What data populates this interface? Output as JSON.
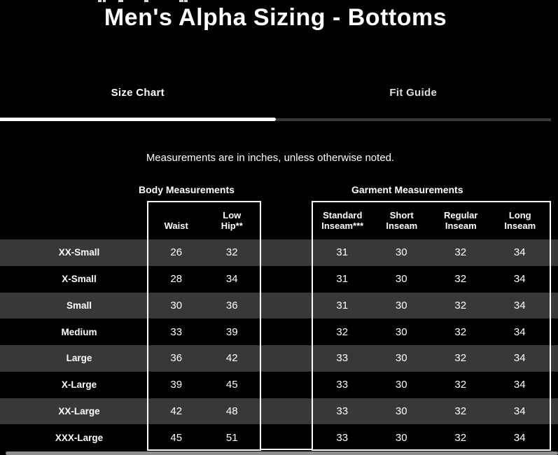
{
  "page": {
    "title": "Men's Alpha Sizing - Bottoms",
    "note": "Measurements are in inches, unless otherwise noted."
  },
  "tabs": [
    {
      "label": "Size Chart",
      "active": true
    },
    {
      "label": "Fit Guide",
      "active": false
    }
  ],
  "table": {
    "groups": [
      {
        "label": "Body Measurements",
        "columns": [
          "Waist",
          "Low Hip**"
        ]
      },
      {
        "label": "Garment Measurements",
        "columns": [
          "Standard Inseam***",
          "Short Inseam",
          "Regular Inseam",
          "Long Inseam"
        ]
      }
    ],
    "rows": [
      {
        "size": "XX-Small",
        "body": [
          "26",
          "32"
        ],
        "garment": [
          "31",
          "30",
          "32",
          "34"
        ]
      },
      {
        "size": "X-Small",
        "body": [
          "28",
          "34"
        ],
        "garment": [
          "31",
          "30",
          "32",
          "34"
        ]
      },
      {
        "size": "Small",
        "body": [
          "30",
          "36"
        ],
        "garment": [
          "31",
          "30",
          "32",
          "34"
        ]
      },
      {
        "size": "Medium",
        "body": [
          "33",
          "39"
        ],
        "garment": [
          "32",
          "30",
          "32",
          "34"
        ]
      },
      {
        "size": "Large",
        "body": [
          "36",
          "42"
        ],
        "garment": [
          "33",
          "30",
          "32",
          "34"
        ]
      },
      {
        "size": "X-Large",
        "body": [
          "39",
          "45"
        ],
        "garment": [
          "33",
          "30",
          "32",
          "34"
        ]
      },
      {
        "size": "XX-Large",
        "body": [
          "42",
          "48"
        ],
        "garment": [
          "33",
          "30",
          "32",
          "34"
        ]
      },
      {
        "size": "XXX-Large",
        "body": [
          "45",
          "51"
        ],
        "garment": [
          "33",
          "30",
          "32",
          "34"
        ]
      }
    ]
  },
  "colors": {
    "background": "#000000",
    "stripe": "#383838",
    "text": "#ffffff",
    "active_underline": "#ffffff",
    "inactive_underline": "#3a3a3a",
    "scrollbar": "#8f8f8f"
  }
}
